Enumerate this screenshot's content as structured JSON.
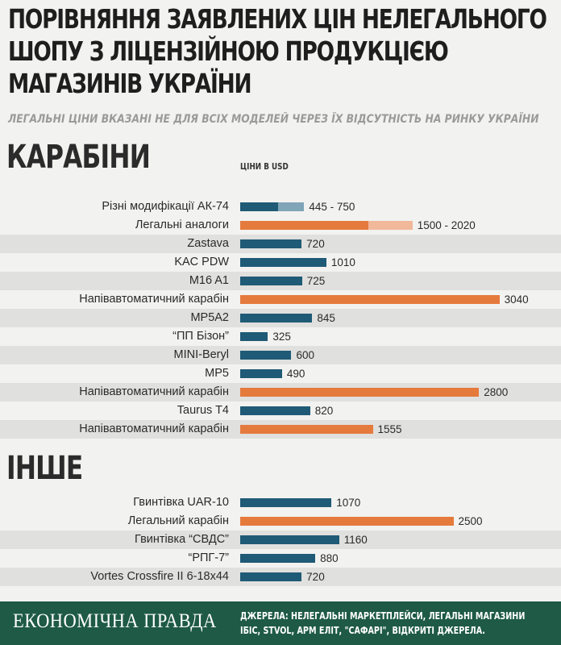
{
  "title": "Порівняння заявлених цін нелегального шопу з ліцензійною продукцією магазинів України",
  "subtitle": "Легальні ціни вказані не для всіх моделей через їх відсутність на ринку України",
  "units_label": "ЦІНИ В USD",
  "footer": {
    "logo": "ЕКОНОМІЧНА ПРАВДА",
    "sources": "ДЖЕРЕЛА: НЕЛЕГАЛЬНІ МАРКЕТПЛЕЙСИ, ЛЕГАЛЬНІ МАГАЗИНИ ІБІС, STVOL, АРМ ЕЛІТ, \"САФАРІ\", ВІДКРИТІ ДЖЕРЕЛА."
  },
  "colors": {
    "illegal": "#1f5a76",
    "illegal_light": "#7fa5b7",
    "legal": "#e57a3d",
    "legal_light": "#f2b89a",
    "band": "#e0e0de",
    "footer": "#1e5a46"
  },
  "chart_data": [
    {
      "type": "bar",
      "orientation": "horizontal",
      "title": "Карабіни",
      "unit": "USD",
      "xlim": [
        0,
        3200
      ],
      "rows": [
        {
          "label": "Різні модифікації АК-74",
          "kind": "illegal",
          "min": 445,
          "max": 750,
          "value_label": "445 - 750"
        },
        {
          "label": "Легальні аналоги",
          "kind": "legal",
          "min": 1500,
          "max": 2020,
          "value_label": "1500 - 2020"
        },
        {
          "label": "Zastava",
          "kind": "illegal",
          "value": 720,
          "value_label": "720"
        },
        {
          "label": "KAC PDW",
          "kind": "illegal",
          "value": 1010,
          "value_label": "1010"
        },
        {
          "label": "M16 A1",
          "kind": "illegal",
          "value": 725,
          "value_label": "725"
        },
        {
          "label": "Напівавтоматичний карабін",
          "kind": "legal",
          "value": 3040,
          "value_label": "3040"
        },
        {
          "label": "MP5A2",
          "kind": "illegal",
          "value": 845,
          "value_label": "845"
        },
        {
          "label": "“ПП Бізон”",
          "kind": "illegal",
          "value": 325,
          "value_label": "325"
        },
        {
          "label": "MINI-Beryl",
          "kind": "illegal",
          "value": 600,
          "value_label": "600"
        },
        {
          "label": "MP5",
          "kind": "illegal",
          "value": 490,
          "value_label": "490"
        },
        {
          "label": "Напівавтоматичний карабін",
          "kind": "legal",
          "value": 2800,
          "value_label": "2800"
        },
        {
          "label": "Taurus T4",
          "kind": "illegal",
          "value": 820,
          "value_label": "820"
        },
        {
          "label": "Напівавтоматичний карабін",
          "kind": "legal",
          "value": 1555,
          "value_label": "1555"
        }
      ]
    },
    {
      "type": "bar",
      "orientation": "horizontal",
      "title": "Інше",
      "unit": "USD",
      "xlim": [
        0,
        3200
      ],
      "rows": [
        {
          "label": "Гвинтівка UAR-10",
          "kind": "illegal",
          "value": 1070,
          "value_label": "1070"
        },
        {
          "label": "Легальний карабін",
          "kind": "legal",
          "value": 2500,
          "value_label": "2500"
        },
        {
          "label": "Гвинтівка “СВДС”",
          "kind": "illegal",
          "value": 1160,
          "value_label": "1160"
        },
        {
          "label": "“РПГ-7”",
          "kind": "illegal",
          "value": 880,
          "value_label": "880"
        },
        {
          "label": "Vortes Crossfire II 6-18x44",
          "kind": "illegal",
          "value": 720,
          "value_label": "720"
        }
      ]
    }
  ]
}
